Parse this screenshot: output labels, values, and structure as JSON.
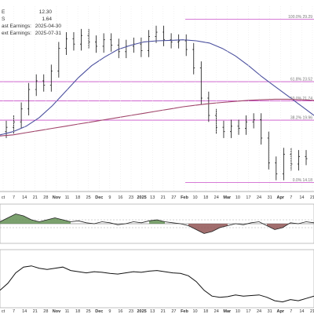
{
  "header": {
    "stats": [
      {
        "label": "E",
        "value": "12.30"
      },
      {
        "label": "S",
        "value": "1.64"
      },
      {
        "label": "ast Earnings:",
        "value": "2025-04-30"
      },
      {
        "label": "ext Earnings:",
        "value": "2025-07-31"
      }
    ]
  },
  "chart_data": [
    {
      "type": "candlestick",
      "panel": "price",
      "title": "",
      "fibonacci_levels": [
        {
          "label": "100.0% 29.29",
          "value": 29.29
        },
        {
          "label": "61.8% 23.52",
          "value": 23.52
        },
        {
          "label": "50.0% 21.74",
          "value": 21.74
        },
        {
          "label": "38.2% 19.96",
          "value": 19.96
        },
        {
          "label": "0.0% 14.18",
          "value": 14.18
        }
      ],
      "ylim": [
        13.5,
        30.5
      ],
      "moving_averages": [
        {
          "color": "#4a4f9e",
          "y": [
            18.6,
            18.9,
            19.4,
            20.2,
            21.3,
            22.6,
            23.9,
            25.0,
            25.8,
            26.5,
            26.9,
            27.2,
            27.3,
            27.35,
            27.4,
            27.3,
            27.1,
            26.6,
            25.9,
            25.0,
            24.0,
            23.1,
            22.2,
            21.3,
            20.4
          ]
        },
        {
          "color": "#a0446a",
          "y": [
            18.5,
            18.6,
            18.8,
            19.0,
            19.2,
            19.4,
            19.6,
            19.8,
            20.0,
            20.2,
            20.4,
            20.6,
            20.8,
            21.0,
            21.2,
            21.35,
            21.5,
            21.6,
            21.7,
            21.8,
            21.85,
            21.9,
            21.9,
            21.85,
            21.8
          ]
        }
      ],
      "close": [
        19.3,
        19.8,
        21.0,
        22.8,
        23.6,
        23.2,
        24.5,
        26.6,
        27.5,
        27.0,
        27.8,
        27.2,
        26.8,
        27.4,
        26.9,
        26.3,
        26.8,
        27.0,
        26.4,
        27.7,
        28.1,
        27.4,
        27.2,
        27.3,
        26.5,
        24.8,
        22.0,
        20.4,
        19.3,
        18.9,
        19.4,
        19.2,
        19.8,
        20.0,
        18.3,
        16.0,
        15.0,
        16.8,
        15.9,
        16.6,
        16.4
      ],
      "x_tick_labels": [
        "ct",
        "7",
        "14",
        "21",
        "28",
        "Nov",
        "11",
        "18",
        "25",
        "Dec",
        "9",
        "16",
        "23",
        "2025",
        "13",
        "21",
        "27",
        "Feb",
        "10",
        "18",
        "24",
        "Mar",
        "10",
        "17",
        "24",
        "31",
        "Apr",
        "7",
        "14",
        "21"
      ]
    },
    {
      "type": "line",
      "panel": "oscillator",
      "title": "",
      "fill_colors": {
        "positive": "#5a8a4a",
        "negative": "#8a4a4a"
      },
      "ylim": [
        -1,
        1
      ],
      "y": [
        0.1,
        0.3,
        0.5,
        0.4,
        0.2,
        0.1,
        0.2,
        0.3,
        0.2,
        0.1,
        0.15,
        0.05,
        0.0,
        0.1,
        0.05,
        -0.05,
        0.0,
        0.1,
        0.05,
        0.15,
        0.2,
        0.1,
        0.05,
        0.0,
        -0.1,
        -0.3,
        -0.5,
        -0.4,
        -0.2,
        -0.1,
        0.0,
        -0.05,
        0.05,
        0.1,
        -0.1,
        -0.3,
        -0.2,
        0.05,
        0.0,
        0.1,
        0.05
      ]
    },
    {
      "type": "line",
      "panel": "indicator",
      "title": "",
      "ylim": [
        0,
        100
      ],
      "y": [
        30,
        42,
        60,
        70,
        72,
        68,
        66,
        68,
        70,
        64,
        62,
        60,
        62,
        61,
        59,
        58,
        60,
        62,
        61,
        63,
        64,
        62,
        60,
        59,
        55,
        45,
        30,
        20,
        18,
        19,
        22,
        20,
        21,
        22,
        18,
        12,
        10,
        14,
        12,
        16,
        20
      ]
    }
  ]
}
